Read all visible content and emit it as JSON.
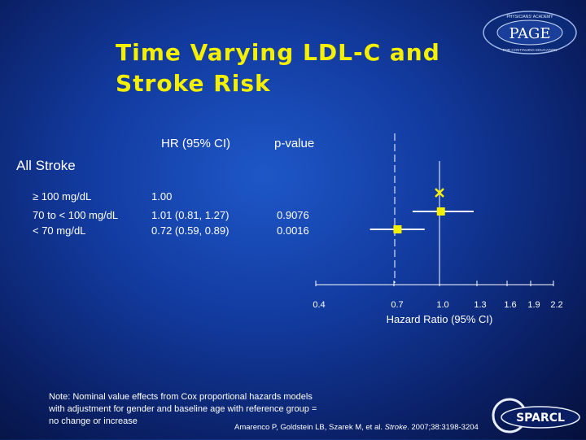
{
  "title_lines": [
    "Time Varying LDL-C and",
    "Stroke Risk"
  ],
  "table": {
    "col_hr": "HR (95% CI)",
    "col_p": "p-value",
    "group": "All Stroke",
    "rows": [
      {
        "label": "≥ 100 mg/dL",
        "hr": "1.00",
        "p": ""
      },
      {
        "label": "70 to < 100 mg/dL",
        "hr": "1.01 (0.81, 1.27)",
        "p": "0.9076"
      },
      {
        "label": "< 70 mg/dL",
        "hr": "0.72 (0.59, 0.89)",
        "p": "0.0016"
      }
    ]
  },
  "note": "Note:  Nominal value effects from Cox proportional hazards models with adjustment for gender and baseline age with reference group = no change or increase",
  "citation": {
    "authors": "Amarenco P, Goldstein LB, Szarek M, et al.",
    "journal": "Stroke",
    "details": ". 2007;38:3198-3204"
  },
  "logos": {
    "page_text": "PAGE",
    "page_ring_top": "PHYSICIANS' ACADEMY",
    "page_ring_bottom": "FOR CONTINUING EDUCATION",
    "sparcl_text": "SPARCL"
  },
  "chart_data": {
    "type": "forest",
    "xlabel": "Hazard Ratio (95% CI)",
    "x_ticks": [
      0.4,
      0.7,
      1.0,
      1.3,
      1.6,
      1.9,
      2.2
    ],
    "xlim": [
      0.4,
      2.2
    ],
    "reference_line": 1.0,
    "points": [
      {
        "label": "≥ 100 mg/dL",
        "hr": 1.0,
        "lower": null,
        "upper": null,
        "reference": true
      },
      {
        "label": "70 to < 100 mg/dL",
        "hr": 1.01,
        "lower": 0.81,
        "upper": 1.27
      },
      {
        "label": "< 70 mg/dL",
        "hr": 0.72,
        "lower": 0.59,
        "upper": 0.89
      }
    ],
    "marker_color": "#f4f000",
    "line_color": "#ffffff"
  }
}
